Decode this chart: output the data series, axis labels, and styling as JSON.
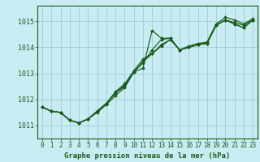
{
  "title": "Graphe pression niveau de la mer (hPa)",
  "bg_color": "#c8ecf2",
  "line_color": "#1a5c1a",
  "grid_color": "#9ecdd8",
  "xlabel_color": "#1a5c1a",
  "xlim": [
    -0.5,
    23.5
  ],
  "ylim": [
    1010.5,
    1015.6
  ],
  "yticks": [
    1011,
    1012,
    1013,
    1014,
    1015
  ],
  "xticks": [
    0,
    1,
    2,
    3,
    4,
    5,
    6,
    7,
    8,
    9,
    10,
    11,
    12,
    13,
    14,
    15,
    16,
    17,
    18,
    19,
    20,
    21,
    22,
    23
  ],
  "series": [
    [
      1011.7,
      1011.55,
      1011.5,
      1011.2,
      1011.1,
      1011.25,
      1011.5,
      1011.8,
      1012.15,
      1012.45,
      1013.05,
      1013.2,
      1014.65,
      1014.35,
      1014.35,
      1013.9,
      1014.05,
      1014.15,
      1014.2,
      1014.9,
      1015.15,
      1015.05,
      1014.9,
      1015.1
    ],
    [
      1011.7,
      1011.55,
      1011.5,
      1011.2,
      1011.1,
      1011.25,
      1011.55,
      1011.85,
      1012.25,
      1012.5,
      1013.05,
      1013.4,
      1013.9,
      1014.3,
      1014.35,
      1013.9,
      1014.0,
      1014.1,
      1014.2,
      1014.85,
      1015.05,
      1014.95,
      1014.85,
      1015.05
    ],
    [
      1011.7,
      1011.55,
      1011.5,
      1011.2,
      1011.1,
      1011.25,
      1011.55,
      1011.85,
      1012.25,
      1012.55,
      1013.05,
      1013.45,
      1013.75,
      1014.05,
      1014.3,
      1013.9,
      1014.0,
      1014.1,
      1014.15,
      1014.85,
      1015.05,
      1014.9,
      1014.75,
      1015.05
    ],
    [
      1011.7,
      1011.55,
      1011.5,
      1011.2,
      1011.1,
      1011.25,
      1011.55,
      1011.85,
      1012.3,
      1012.6,
      1013.1,
      1013.55,
      1013.75,
      1014.1,
      1014.3,
      1013.9,
      1014.0,
      1014.1,
      1014.15,
      1014.85,
      1015.05,
      1014.9,
      1014.75,
      1015.05
    ]
  ],
  "marker": "D",
  "marker_size": 1.8,
  "linewidth": 0.85,
  "tick_fontsize": 6.0,
  "label_fontsize": 6.5
}
